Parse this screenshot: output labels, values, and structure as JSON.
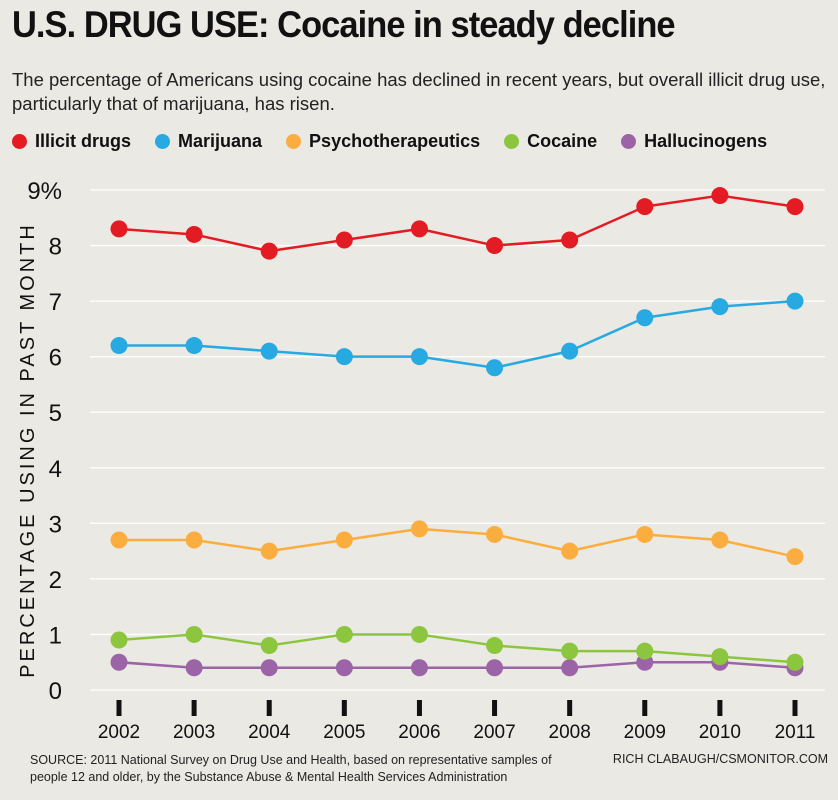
{
  "header": {
    "title": "U.S. DRUG USE: Cocaine in steady decline",
    "subtitle": "The percentage of Americans using cocaine has declined in recent years, but overall illicit drug use, particularly that of marijuana, has risen."
  },
  "colors": {
    "illicit": "#e31b23",
    "marijuana": "#27a9e1",
    "psycho": "#fbae3f",
    "cocaine": "#8cc63f",
    "hallucinogens": "#9b64a6",
    "background": "#ebe9e4",
    "grid": "#ffffff"
  },
  "chart_data": {
    "type": "line",
    "title": "U.S. DRUG USE: Cocaine in steady decline",
    "xlabel": "",
    "ylabel": "PERCENTAGE USING IN PAST MONTH",
    "x": [
      2002,
      2003,
      2004,
      2005,
      2006,
      2007,
      2008,
      2009,
      2010,
      2011
    ],
    "x_tick_labels": [
      "2002",
      "2003",
      "2004",
      "2005",
      "2006",
      "2007",
      "2008",
      "2009",
      "2010",
      "2011"
    ],
    "y_tick_labels": [
      "0",
      "1",
      "2",
      "3",
      "4",
      "5",
      "6",
      "7",
      "8",
      "9%"
    ],
    "ylim": [
      0,
      9
    ],
    "grid": true,
    "legend_position": "top",
    "series": [
      {
        "name": "Illicit drugs",
        "color_key": "illicit",
        "values": [
          8.3,
          8.2,
          7.9,
          8.1,
          8.3,
          8.0,
          8.1,
          8.7,
          8.9,
          8.7
        ]
      },
      {
        "name": "Marijuana",
        "color_key": "marijuana",
        "values": [
          6.2,
          6.2,
          6.1,
          6.0,
          6.0,
          5.8,
          6.1,
          6.7,
          6.9,
          7.0
        ]
      },
      {
        "name": "Psychotherapeutics",
        "color_key": "psycho",
        "values": [
          2.7,
          2.7,
          2.5,
          2.7,
          2.9,
          2.8,
          2.5,
          2.8,
          2.7,
          2.4
        ]
      },
      {
        "name": "Cocaine",
        "color_key": "cocaine",
        "values": [
          0.9,
          1.0,
          0.8,
          1.0,
          1.0,
          0.8,
          0.7,
          0.7,
          0.6,
          0.5
        ]
      },
      {
        "name": "Hallucinogens",
        "color_key": "hallucinogens",
        "values": [
          0.5,
          0.4,
          0.4,
          0.4,
          0.4,
          0.4,
          0.4,
          0.5,
          0.5,
          0.4
        ]
      }
    ]
  },
  "footer": {
    "source": "SOURCE:  2011 National Survey on Drug Use and Health, based on representative samples of people 12 and older, by the  Substance Abuse & Mental Health Services Administration",
    "credit": "RICH CLABAUGH/CSMONITOR.COM"
  }
}
